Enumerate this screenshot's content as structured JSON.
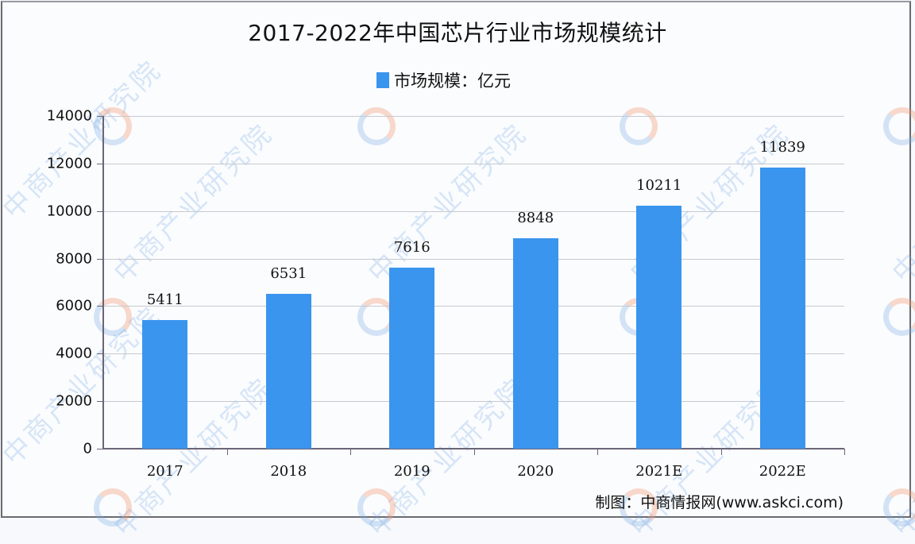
{
  "title": "2017-2022年中国芯片行业市场规模统计",
  "legend": {
    "label": "市场规模：亿元",
    "color": "#3a95ee"
  },
  "source": "制图：中商情报网(www.askci.com)",
  "watermark": "中商产业研究院",
  "chart_data": {
    "type": "bar",
    "title": "2017-2022年中国芯片行业市场规模统计",
    "xlabel": "",
    "ylabel": "",
    "categories": [
      "2017",
      "2018",
      "2019",
      "2020",
      "2021E",
      "2022E"
    ],
    "series": [
      {
        "name": "市场规模：亿元",
        "values": [
          5411,
          6531,
          7616,
          8848,
          10211,
          11839
        ],
        "color": "#3a95ee"
      }
    ],
    "value_labels": [
      "5411",
      "6531",
      "7616",
      "8848",
      "10211",
      "11839"
    ],
    "ylim": [
      0,
      14000
    ],
    "yticks": [
      "0",
      "2000",
      "4000",
      "6000",
      "8000",
      "10000",
      "12000",
      "14000"
    ],
    "grid": true,
    "legend_position": "top-center"
  }
}
